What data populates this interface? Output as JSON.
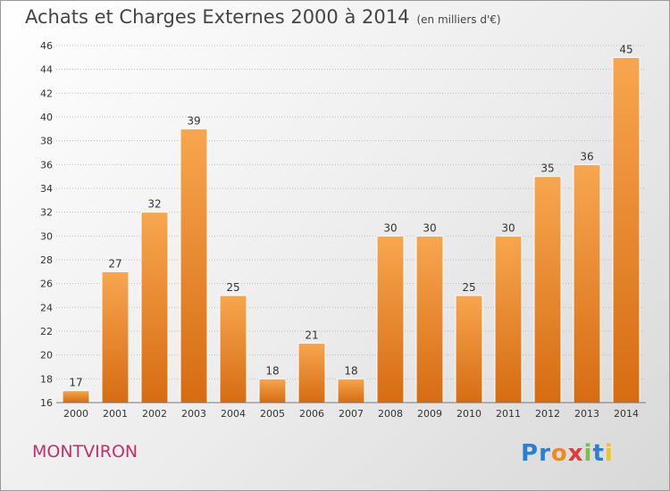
{
  "header": {
    "title": "Achats et Charges Externes 2000 à 2014",
    "unit": "(en milliers d'€)"
  },
  "footer": {
    "commune": "MONTVIRON",
    "logo_text": "Proxiti"
  },
  "colors": {
    "bar_light": "#f7a64f",
    "bar_dark": "#d66c12",
    "grid": "#bdbdbd",
    "axis_text": "#333333",
    "commune": "#c0306a"
  },
  "chart_data": {
    "type": "bar",
    "title": "Achats et Charges Externes 2000 à 2014",
    "subtitle": "(en milliers d'€)",
    "categories": [
      "2000",
      "2001",
      "2002",
      "2003",
      "2004",
      "2005",
      "2006",
      "2007",
      "2008",
      "2009",
      "2010",
      "2011",
      "2012",
      "2013",
      "2014"
    ],
    "values": [
      17,
      27,
      32,
      39,
      25,
      18,
      21,
      18,
      30,
      30,
      25,
      30,
      35,
      36,
      45
    ],
    "ylim": [
      16,
      46
    ],
    "yticks": [
      16,
      18,
      20,
      22,
      24,
      26,
      28,
      30,
      32,
      34,
      36,
      38,
      40,
      42,
      44,
      46
    ],
    "grid": true,
    "legend": "none"
  }
}
